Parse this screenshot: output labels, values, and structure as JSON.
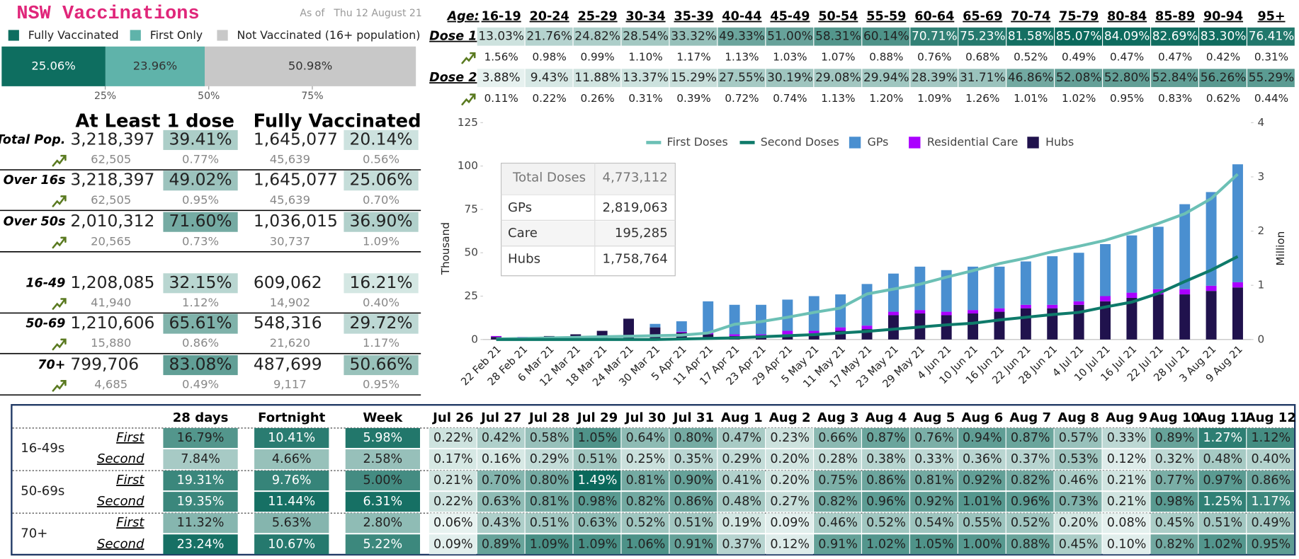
{
  "header": {
    "title": "NSW Vaccinations",
    "as_of": "As of",
    "date": "Thu 12 August 21"
  },
  "legend": {
    "items": [
      "Fully Vaccinated",
      "First Only",
      "Not Vaccinated (16+ population)"
    ],
    "colors": [
      "#0e6e60",
      "#5fb3aa",
      "#c8c8c8"
    ]
  },
  "progress": {
    "values": [
      25.06,
      23.96,
      50.98
    ],
    "value_labels": [
      "25.06%",
      "23.96%",
      "50.98%"
    ],
    "colors": [
      "#0e6e60",
      "#5fb3aa",
      "#c8c8c8"
    ],
    "xlim": [
      0,
      100
    ],
    "ticks": [
      {
        "value": 25,
        "label": "25%"
      },
      {
        "value": 50,
        "label": "50%"
      },
      {
        "value": 75,
        "label": "75%"
      }
    ]
  },
  "summary": {
    "headers": [
      "At Least 1 dose",
      "Fully Vaccinated"
    ],
    "rows": [
      {
        "label": "Total Pop.",
        "cells": [
          "3,218,397",
          "39.41%",
          "1,645,077",
          "20.14%"
        ],
        "change": [
          "62,505",
          "0.77%",
          "45,639",
          "0.56%"
        ]
      },
      {
        "label": "Over 16s",
        "cells": [
          "3,218,397",
          "49.02%",
          "1,645,077",
          "25.06%"
        ],
        "change": [
          "62,505",
          "0.95%",
          "45,639",
          "0.70%"
        ]
      },
      {
        "label": "Over 50s",
        "cells": [
          "2,010,312",
          "71.60%",
          "1,036,015",
          "36.90%"
        ],
        "change": [
          "20,565",
          "0.73%",
          "30,737",
          "1.09%"
        ]
      },
      {
        "label": "16-49",
        "cells": [
          "1,208,085",
          "32.15%",
          "609,062",
          "16.21%"
        ],
        "change": [
          "41,940",
          "1.12%",
          "14,902",
          "0.40%"
        ]
      },
      {
        "label": "50-69",
        "cells": [
          "1,210,606",
          "65.61%",
          "548,316",
          "29.72%"
        ],
        "change": [
          "15,880",
          "0.86%",
          "21,620",
          "1.17%"
        ]
      },
      {
        "label": "70+",
        "cells": [
          "799,706",
          "83.08%",
          "487,699",
          "50.66%"
        ],
        "change": [
          "4,685",
          "0.49%",
          "9,117",
          "0.95%"
        ]
      }
    ]
  },
  "ages": {
    "label": "Age:",
    "groups": [
      "16-19",
      "20-24",
      "25-29",
      "30-34",
      "35-39",
      "40-44",
      "45-49",
      "50-54",
      "55-59",
      "60-64",
      "65-69",
      "70-74",
      "75-79",
      "80-84",
      "85-89",
      "90-94",
      "95+"
    ],
    "rows": [
      {
        "label": "Dose 1",
        "values": [
          "13.03%",
          "21.76%",
          "24.82%",
          "28.54%",
          "33.32%",
          "49.33%",
          "51.00%",
          "58.31%",
          "60.14%",
          "70.71%",
          "75.23%",
          "81.58%",
          "85.07%",
          "84.09%",
          "82.69%",
          "83.30%",
          "76.41%"
        ],
        "change": [
          "1.56%",
          "0.98%",
          "0.99%",
          "1.10%",
          "1.17%",
          "1.13%",
          "1.03%",
          "1.07%",
          "0.88%",
          "0.76%",
          "0.68%",
          "0.52%",
          "0.49%",
          "0.47%",
          "0.47%",
          "0.42%",
          "0.31%"
        ]
      },
      {
        "label": "Dose 2",
        "values": [
          "3.88%",
          "9.43%",
          "11.88%",
          "13.37%",
          "15.29%",
          "27.55%",
          "30.19%",
          "29.08%",
          "29.94%",
          "28.39%",
          "31.71%",
          "46.86%",
          "52.08%",
          "52.80%",
          "52.84%",
          "56.26%",
          "55.29%"
        ],
        "change": [
          "0.11%",
          "0.22%",
          "0.26%",
          "0.31%",
          "0.39%",
          "0.72%",
          "0.74%",
          "1.13%",
          "1.20%",
          "1.09%",
          "1.26%",
          "1.01%",
          "1.02%",
          "0.95%",
          "0.83%",
          "0.62%",
          "0.44%"
        ]
      }
    ]
  },
  "chart_data": {
    "type": "combo",
    "ylabel": "Thousand",
    "y2label": "Million",
    "categories": [
      "22 Feb 21",
      "28 Feb 21",
      "6 Mar 21",
      "12 Mar 21",
      "18 Mar 21",
      "24 Mar 21",
      "30 Mar 21",
      "5 Apr 21",
      "11 Apr 21",
      "17 Apr 21",
      "23 Apr 21",
      "29 Apr 21",
      "5 May 21",
      "11 May 21",
      "17 May 21",
      "23 May 21",
      "29 May 21",
      "4 Jun 21",
      "10 Jun 21",
      "16 Jun 21",
      "22 Jun 21",
      "28 Jun 21",
      "4 Jul 21",
      "10 Jul 21",
      "16 Jul 21",
      "22 Jul 21",
      "28 Jul 21",
      "3 Aug 21",
      "9 Aug 21"
    ],
    "ylim": [
      0,
      125
    ],
    "yticks": [
      0,
      25,
      50,
      75,
      100,
      125
    ],
    "y2lim": [
      0,
      4
    ],
    "y2ticks": [
      0,
      1,
      2,
      3,
      4
    ],
    "series": [
      {
        "name": "First Doses",
        "type": "line",
        "axis": "y2",
        "color": "#6cc0b5",
        "values": [
          0.01,
          0.02,
          0.03,
          0.04,
          0.05,
          0.06,
          0.07,
          0.08,
          0.12,
          0.28,
          0.33,
          0.41,
          0.5,
          0.58,
          0.84,
          0.93,
          1.02,
          1.15,
          1.27,
          1.4,
          1.5,
          1.62,
          1.72,
          1.83,
          1.98,
          2.14,
          2.32,
          2.6,
          3.05
        ]
      },
      {
        "name": "Second Doses",
        "type": "line",
        "axis": "y2",
        "color": "#0e7a6a",
        "values": [
          0,
          0,
          0,
          0,
          0,
          0,
          0,
          0.01,
          0.02,
          0.03,
          0.05,
          0.07,
          0.09,
          0.12,
          0.15,
          0.19,
          0.23,
          0.27,
          0.3,
          0.36,
          0.41,
          0.46,
          0.5,
          0.6,
          0.69,
          0.85,
          1.07,
          1.28,
          1.53
        ]
      },
      {
        "name": "GPs",
        "type": "bar",
        "color": "#4a8fd0",
        "values": [
          0,
          0,
          0,
          0,
          0,
          0,
          2,
          6,
          18,
          17,
          17,
          18,
          20,
          19,
          24,
          22,
          25,
          24,
          25,
          24,
          25,
          28,
          28,
          30,
          33,
          36,
          49,
          54,
          68
        ]
      },
      {
        "name": "Residential Care",
        "type": "bar",
        "color": "#aa00ff",
        "values": [
          0.5,
          0.5,
          0,
          0,
          0,
          0,
          0,
          0.5,
          1,
          1,
          1,
          2,
          2,
          2,
          2,
          2,
          2,
          2,
          2,
          2,
          2,
          2,
          2,
          3,
          3,
          3,
          3,
          3,
          3
        ]
      },
      {
        "name": "Hubs",
        "type": "bar",
        "color": "#20124d",
        "values": [
          1.5,
          1,
          2,
          3,
          5,
          12,
          7,
          4,
          3,
          2,
          2,
          3,
          3,
          5,
          6,
          14,
          15,
          14,
          15,
          16,
          18,
          18,
          20,
          22,
          24,
          26,
          26,
          28,
          30
        ]
      }
    ]
  },
  "tooltip": {
    "rows": [
      [
        "Total Doses",
        "4,773,112"
      ],
      [
        "GPs",
        "2,819,063"
      ],
      [
        "Care",
        "195,285"
      ],
      [
        "Hubs",
        "1,758,764"
      ]
    ]
  },
  "daily": {
    "columns": [
      "28 days",
      "Fortnight",
      "Week",
      "Jul 26",
      "Jul 27",
      "Jul 28",
      "Jul 29",
      "Jul 30",
      "Jul 31",
      "Aug 1",
      "Aug 2",
      "Aug 3",
      "Aug 4",
      "Aug 5",
      "Aug 6",
      "Aug 7",
      "Aug 8",
      "Aug 9",
      "Aug 10",
      "Aug 11",
      "Aug 12"
    ],
    "groups": [
      {
        "label": "16-49s",
        "rows": [
          {
            "label": "First",
            "values": [
              "16.79%",
              "10.41%",
              "5.98%",
              "0.22%",
              "0.42%",
              "0.58%",
              "1.05%",
              "0.64%",
              "0.80%",
              "0.47%",
              "0.23%",
              "0.66%",
              "0.87%",
              "0.76%",
              "0.94%",
              "0.87%",
              "0.57%",
              "0.33%",
              "0.89%",
              "1.27%",
              "1.12%"
            ]
          },
          {
            "label": "Second",
            "values": [
              "7.84%",
              "4.66%",
              "2.58%",
              "0.17%",
              "0.16%",
              "0.29%",
              "0.51%",
              "0.25%",
              "0.35%",
              "0.29%",
              "0.20%",
              "0.28%",
              "0.38%",
              "0.33%",
              "0.36%",
              "0.37%",
              "0.53%",
              "0.12%",
              "0.32%",
              "0.48%",
              "0.40%"
            ]
          }
        ]
      },
      {
        "label": "50-69s",
        "rows": [
          {
            "label": "First",
            "values": [
              "19.31%",
              "9.76%",
              "5.00%",
              "0.21%",
              "0.70%",
              "0.80%",
              "1.49%",
              "0.81%",
              "0.90%",
              "0.41%",
              "0.20%",
              "0.75%",
              "0.86%",
              "0.81%",
              "0.92%",
              "0.82%",
              "0.46%",
              "0.21%",
              "0.77%",
              "0.97%",
              "0.86%"
            ]
          },
          {
            "label": "Second",
            "values": [
              "19.35%",
              "11.44%",
              "6.31%",
              "0.22%",
              "0.63%",
              "0.81%",
              "0.98%",
              "0.82%",
              "0.86%",
              "0.48%",
              "0.27%",
              "0.82%",
              "0.96%",
              "0.92%",
              "1.01%",
              "0.96%",
              "0.73%",
              "0.21%",
              "0.98%",
              "1.25%",
              "1.17%"
            ]
          }
        ]
      },
      {
        "label": "70+",
        "rows": [
          {
            "label": "First",
            "values": [
              "11.32%",
              "5.63%",
              "2.80%",
              "0.06%",
              "0.43%",
              "0.51%",
              "0.63%",
              "0.52%",
              "0.51%",
              "0.19%",
              "0.09%",
              "0.46%",
              "0.52%",
              "0.54%",
              "0.55%",
              "0.52%",
              "0.20%",
              "0.08%",
              "0.45%",
              "0.51%",
              "0.49%"
            ]
          },
          {
            "label": "Second",
            "values": [
              "23.24%",
              "10.67%",
              "5.22%",
              "0.09%",
              "0.89%",
              "1.09%",
              "1.09%",
              "1.06%",
              "0.91%",
              "0.37%",
              "0.12%",
              "0.91%",
              "1.02%",
              "1.05%",
              "1.00%",
              "0.88%",
              "0.45%",
              "0.10%",
              "0.82%",
              "1.02%",
              "0.95%"
            ]
          }
        ]
      }
    ]
  }
}
